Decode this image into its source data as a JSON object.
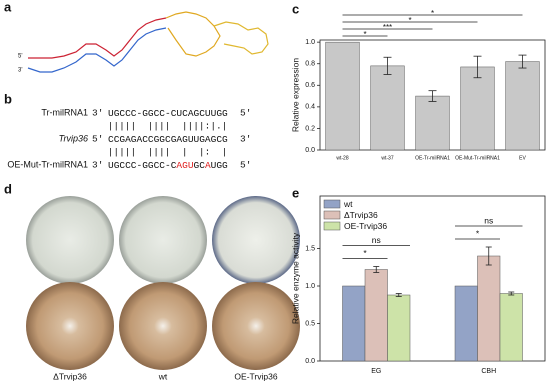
{
  "panel_labels": [
    "a",
    "b",
    "c",
    "d",
    "e"
  ],
  "structure": {
    "five_prime": "5'",
    "three_prime": "3'"
  },
  "alignment": {
    "rows": [
      {
        "name": "Tr-milRNA1",
        "start": "3'",
        "segments": [
          {
            "text": "UGCCC-GGCC-CUCAGCUUGG",
            "color": "#111111"
          }
        ],
        "end": "5'"
      },
      {
        "name": "Trvip36",
        "start": "5'",
        "segments": [
          {
            "text": "CCGAGACCGGCGAGUUGAGCG",
            "color": "#111111"
          }
        ],
        "end": "3'"
      },
      {
        "name": "OE-Mut-Tr-milRNA1",
        "start": "3'",
        "segments": [
          {
            "text": "UGCCC-GGCC-C",
            "color": "#111111"
          },
          {
            "text": "AGU",
            "color": "#e02020"
          },
          {
            "text": "GC",
            "color": "#111111"
          },
          {
            "text": "A",
            "color": "#e02020"
          },
          {
            "text": "UGG",
            "color": "#111111"
          }
        ],
        "end": "5'"
      }
    ],
    "pairings": [
      " |||||  ||||  ||||:|.|",
      " |||||  ||||  |  |:  |"
    ]
  },
  "plates": {
    "labels": [
      "ΔTrvip36",
      "wt",
      "OE-Trvip36"
    ]
  },
  "chart_data": [
    {
      "type": "bar",
      "ylabel": "Relative  expression",
      "categories": [
        "wt-28",
        "wt-37",
        "OE-Tr-milRNA1",
        "OE-Mut-Tr-milRNA1",
        "EV"
      ],
      "values": [
        1.0,
        0.78,
        0.5,
        0.77,
        0.82
      ],
      "errors": [
        0,
        0.08,
        0.05,
        0.1,
        0.06
      ],
      "color": "#c8c8c8",
      "ylim": [
        0,
        1.02
      ],
      "yticks": [
        {
          "value": 0,
          "label": "0.0"
        },
        0.2,
        0.4,
        0.6,
        0.8,
        {
          "value": 1,
          "label": "1.0"
        }
      ],
      "comparisons": [
        {
          "groups": [
            "wt-28",
            "wt-37"
          ],
          "label": "*"
        },
        {
          "groups": [
            "wt-28",
            "OE-Tr-milRNA1"
          ],
          "label": "***"
        },
        {
          "groups": [
            "wt-28",
            "OE-Mut-Tr-milRNA1"
          ],
          "label": "*"
        },
        {
          "groups": [
            "wt-28",
            "EV"
          ],
          "label": "*"
        }
      ]
    },
    {
      "type": "bar",
      "ylabel": "Relative enzyme activity",
      "categories": [
        "EG",
        "CBH"
      ],
      "series": [
        {
          "name": "wt",
          "color": "#93a3c6",
          "values": [
            1.0,
            1.0
          ],
          "errors": [
            0,
            0
          ]
        },
        {
          "name": "ΔTrvip36",
          "color": "#dcc0b8",
          "values": [
            1.22,
            1.4
          ],
          "errors": [
            0.04,
            0.12
          ]
        },
        {
          "name": "OE-Trvip36",
          "color": "#cde3a8",
          "values": [
            0.88,
            0.9
          ],
          "errors": [
            0.02,
            0.02
          ]
        }
      ],
      "ylim": [
        0,
        2.2
      ],
      "yticks": [
        {
          "value": 0,
          "label": "0.0"
        },
        0.5,
        {
          "value": 1,
          "label": "1.0"
        },
        1.5
      ],
      "legend": "top-left",
      "comparisons": [
        {
          "category": "EG",
          "groups": [
            "wt",
            "ΔTrvip36"
          ],
          "label": "*"
        },
        {
          "category": "EG",
          "groups": [
            "wt",
            "OE-Trvip36"
          ],
          "label": "ns"
        },
        {
          "category": "CBH",
          "groups": [
            "wt",
            "ΔTrvip36"
          ],
          "label": "*"
        },
        {
          "category": "CBH",
          "groups": [
            "wt",
            "OE-Trvip36"
          ],
          "label": "ns"
        }
      ]
    }
  ]
}
